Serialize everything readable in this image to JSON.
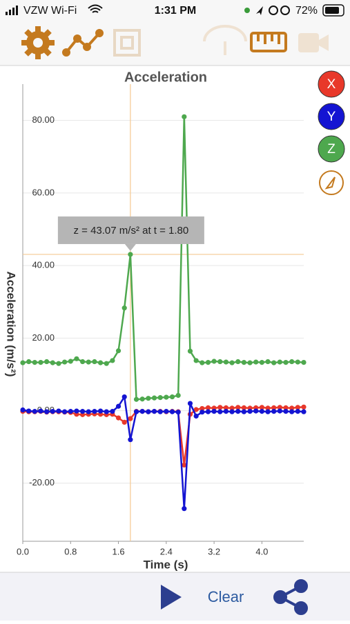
{
  "status_bar": {
    "carrier": "VZW Wi-Fi",
    "time": "1:31 PM",
    "battery": "72%"
  },
  "chart_data": {
    "type": "line",
    "title": "Acceleration",
    "x_label": "Time (s)",
    "y_label": "Acceleration (m/s²)",
    "x": [
      0.0,
      0.1,
      0.2,
      0.3,
      0.4,
      0.5,
      0.6,
      0.7,
      0.8,
      0.9,
      1.0,
      1.1,
      1.2,
      1.3,
      1.4,
      1.5,
      1.6,
      1.7,
      1.8,
      1.9,
      2.0,
      2.1,
      2.2,
      2.3,
      2.4,
      2.5,
      2.6,
      2.7,
      2.8,
      2.9,
      3.0,
      3.1,
      3.2,
      3.3,
      3.4,
      3.5,
      3.6,
      3.7,
      3.8,
      3.9,
      4.0,
      4.1,
      4.2,
      4.3,
      4.4,
      4.5,
      4.6,
      4.7
    ],
    "series": [
      {
        "name": "X",
        "color": "#e8382a",
        "values": [
          -0.2,
          -0.3,
          -0.3,
          -0.2,
          -0.4,
          -0.3,
          -0.3,
          -0.4,
          -0.5,
          -1.0,
          -1.1,
          -1.0,
          -0.9,
          -1.0,
          -1.1,
          -1.0,
          -2.0,
          -3.2,
          -2.2,
          -0.2,
          -0.2,
          -0.3,
          -0.2,
          -0.2,
          -0.3,
          -0.2,
          -0.3,
          -15.0,
          -1.0,
          0.3,
          0.6,
          0.8,
          0.7,
          0.9,
          0.8,
          0.7,
          0.9,
          0.8,
          0.7,
          0.8,
          0.9,
          0.7,
          0.8,
          0.9,
          0.8,
          0.7,
          0.9,
          1.0
        ]
      },
      {
        "name": "Y",
        "color": "#1414d2",
        "values": [
          0.2,
          -0.1,
          -0.2,
          -0.1,
          -0.3,
          -0.2,
          -0.1,
          -0.3,
          -0.2,
          -0.1,
          -0.2,
          -0.3,
          -0.2,
          -0.1,
          -0.3,
          -0.2,
          1.2,
          3.8,
          -8.0,
          -0.3,
          -0.2,
          -0.3,
          -0.2,
          -0.3,
          -0.2,
          -0.3,
          -0.4,
          -27.0,
          2.0,
          -1.5,
          -0.4,
          -0.3,
          -0.2,
          -0.3,
          -0.2,
          -0.3,
          -0.2,
          -0.3,
          -0.2,
          -0.1,
          -0.2,
          -0.3,
          -0.2,
          -0.1,
          -0.2,
          -0.3,
          -0.2,
          -0.3
        ]
      },
      {
        "name": "Z",
        "color": "#4ea84e",
        "values": [
          13.2,
          13.5,
          13.3,
          13.3,
          13.5,
          13.2,
          13.0,
          13.4,
          13.6,
          14.3,
          13.5,
          13.4,
          13.5,
          13.2,
          13.0,
          13.8,
          16.5,
          28.3,
          43.07,
          3.1,
          3.2,
          3.4,
          3.5,
          3.6,
          3.7,
          3.8,
          4.2,
          81.0,
          16.4,
          13.8,
          13.2,
          13.3,
          13.6,
          13.5,
          13.4,
          13.2,
          13.5,
          13.3,
          13.2,
          13.4,
          13.3,
          13.5,
          13.2,
          13.4,
          13.3,
          13.5,
          13.4,
          13.3
        ]
      }
    ],
    "xlim": [
      0,
      4.7
    ],
    "ylim": [
      -36,
      90
    ],
    "xticks": [
      {
        "value": 0,
        "label": "0.0"
      },
      0.8,
      1.6,
      2.4,
      3.2,
      {
        "value": 4,
        "label": "4.0"
      }
    ],
    "yticks": [
      {
        "value": -20,
        "label": "-20.00"
      },
      {
        "value": 0,
        "label": "0.00"
      },
      {
        "value": 20,
        "label": "20.00"
      },
      {
        "value": 40,
        "label": "40.00"
      },
      {
        "value": 60,
        "label": "60.00"
      },
      {
        "value": 80,
        "label": "80.00"
      }
    ],
    "grid": true,
    "crosshair": {
      "x": 1.8,
      "y": 43.07,
      "color": "#f5c890"
    },
    "tooltip": "z = 43.07 m/s² at t = 1.80"
  },
  "bottom_bar": {
    "clear": "Clear"
  }
}
